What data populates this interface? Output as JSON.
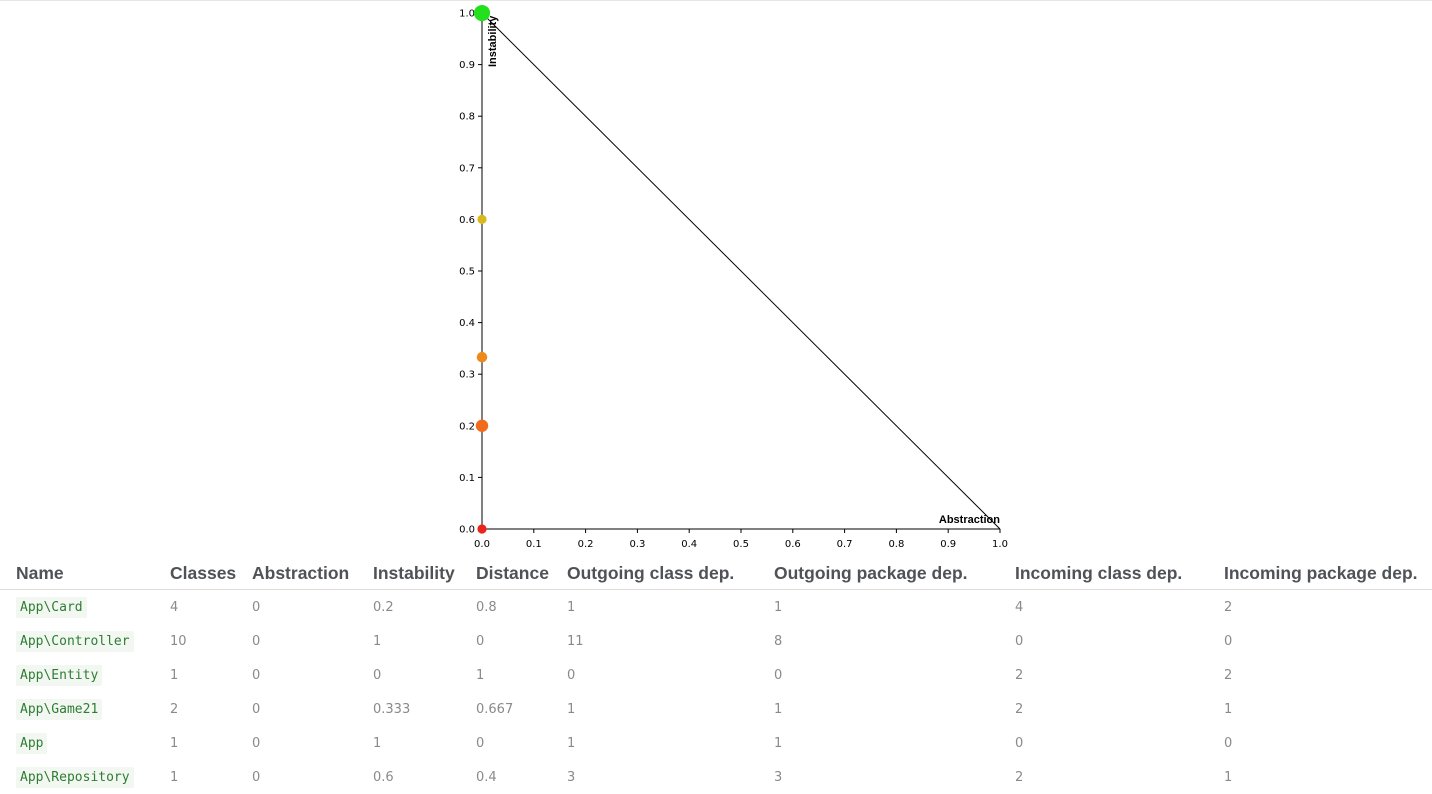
{
  "chart_data": {
    "type": "scatter",
    "xlabel": "Abstraction",
    "ylabel": "Instability",
    "xlim": [
      0,
      1
    ],
    "ylim": [
      0,
      1
    ],
    "x_ticks": [
      "0.0",
      "0.1",
      "0.2",
      "0.3",
      "0.4",
      "0.5",
      "0.6",
      "0.7",
      "0.8",
      "0.9",
      "1.0"
    ],
    "y_ticks": [
      "0.0",
      "0.1",
      "0.2",
      "0.3",
      "0.4",
      "0.5",
      "0.6",
      "0.7",
      "0.8",
      "0.9",
      "1.0"
    ],
    "main_sequence_line": [
      [
        0,
        1
      ],
      [
        1,
        0
      ]
    ],
    "points": [
      {
        "package": "App\\Card",
        "x": 0,
        "y": 0.2,
        "classes": 4,
        "color": "#f26a1b"
      },
      {
        "package": "App\\Controller",
        "x": 0,
        "y": 1,
        "classes": 10,
        "color": "#22e01c"
      },
      {
        "package": "App\\Entity",
        "x": 0,
        "y": 0,
        "classes": 1,
        "color": "#e8261c"
      },
      {
        "package": "App\\Game21",
        "x": 0,
        "y": 0.333,
        "classes": 2,
        "color": "#ec8a1c"
      },
      {
        "package": "App",
        "x": 0,
        "y": 1,
        "classes": 1,
        "color": "#22e01c"
      },
      {
        "package": "App\\Repository",
        "x": 0,
        "y": 0.6,
        "classes": 1,
        "color": "#d8b81c"
      }
    ]
  },
  "table": {
    "headers": [
      "Name",
      "Classes",
      "Abstraction",
      "Instability",
      "Distance",
      "Outgoing class dep.",
      "Outgoing package dep.",
      "Incoming class dep.",
      "Incoming package dep."
    ],
    "rows": [
      [
        "App\\Card",
        "4",
        "0",
        "0.2",
        "0.8",
        "1",
        "1",
        "4",
        "2"
      ],
      [
        "App\\Controller",
        "10",
        "0",
        "1",
        "0",
        "11",
        "8",
        "0",
        "0"
      ],
      [
        "App\\Entity",
        "1",
        "0",
        "0",
        "1",
        "0",
        "0",
        "2",
        "2"
      ],
      [
        "App\\Game21",
        "2",
        "0",
        "0.333",
        "0.667",
        "1",
        "1",
        "2",
        "1"
      ],
      [
        "App",
        "1",
        "0",
        "1",
        "0",
        "1",
        "1",
        "0",
        "0"
      ],
      [
        "App\\Repository",
        "1",
        "0",
        "0.6",
        "0.4",
        "3",
        "3",
        "2",
        "1"
      ]
    ]
  }
}
